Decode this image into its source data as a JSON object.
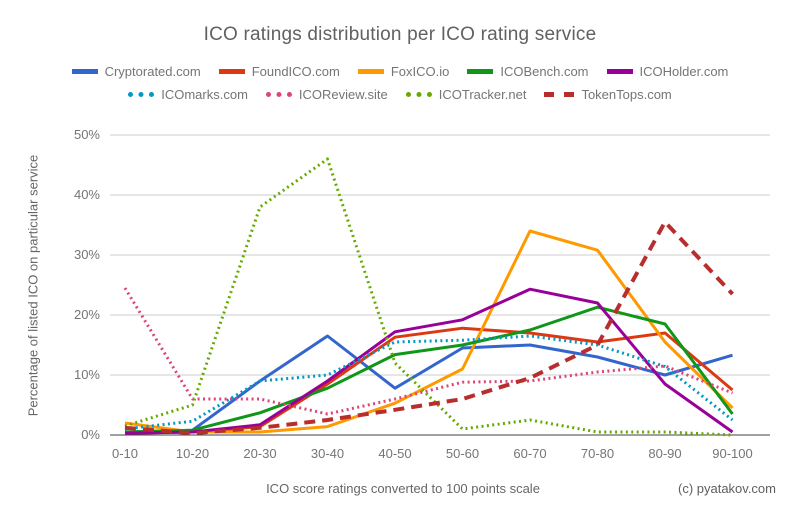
{
  "title": "ICO ratings distribution per ICO rating service",
  "y_axis_title": "Percentage of listed ICO on particular service",
  "x_axis_title": "ICO score ratings converted to 100 points scale",
  "copyright": "(c) pyatakov.com",
  "chart_data": {
    "type": "line",
    "categories": [
      "0-10",
      "10-20",
      "20-30",
      "30-40",
      "40-50",
      "50-60",
      "60-70",
      "70-80",
      "80-90",
      "90-100"
    ],
    "y_ticks": [
      "0%",
      "10%",
      "20%",
      "30%",
      "40%",
      "50%"
    ],
    "ylim": [
      0,
      50
    ],
    "grid": true,
    "legend_position": "top",
    "xlabel": "ICO score ratings converted to 100 points scale",
    "ylabel": "Percentage of listed ICO on particular service",
    "series": [
      {
        "name": "Cryptorated.com",
        "color": "#3366CC",
        "style": "solid",
        "values": [
          0.5,
          0.8,
          9,
          16.5,
          7.8,
          14.5,
          15,
          13,
          10,
          13.3
        ]
      },
      {
        "name": "FoundICO.com",
        "color": "#DC3912",
        "style": "solid",
        "values": [
          0.3,
          0.5,
          1.4,
          8.5,
          16.3,
          17.8,
          17,
          15.5,
          17,
          7.5
        ]
      },
      {
        "name": "FoxICO.io",
        "color": "#FF9900",
        "style": "solid",
        "values": [
          2,
          0.5,
          0.5,
          1.4,
          5.3,
          11,
          34,
          30.8,
          15.5,
          4.5
        ]
      },
      {
        "name": "ICOBench.com",
        "color": "#109618",
        "style": "solid",
        "values": [
          0.5,
          0.8,
          3.7,
          7.8,
          13.4,
          15,
          17.5,
          21.3,
          18.5,
          3.5
        ]
      },
      {
        "name": "ICOHolder.com",
        "color": "#990099",
        "style": "solid",
        "values": [
          0.3,
          0.5,
          1.7,
          9,
          17.2,
          19.2,
          24.3,
          22,
          8.5,
          0.5
        ]
      },
      {
        "name": "ICOmarks.com",
        "color": "#0099C6",
        "style": "dotted",
        "values": [
          1,
          2.3,
          9,
          10,
          15.5,
          15.8,
          16.5,
          15,
          11.4,
          2.5
        ]
      },
      {
        "name": "ICOReview.site",
        "color": "#DD4477",
        "style": "dotted",
        "values": [
          24.5,
          6,
          6,
          3.5,
          6,
          8.8,
          9,
          10.5,
          11.5,
          7
        ]
      },
      {
        "name": "ICOTracker.net",
        "color": "#66AA00",
        "style": "dotted",
        "values": [
          1.5,
          5,
          38,
          46,
          12,
          1,
          2.5,
          0.5,
          0.5,
          0
        ]
      },
      {
        "name": "TokenTops.com",
        "color": "#B82E2E",
        "style": "dashed",
        "values": [
          1.2,
          0.3,
          1.2,
          2.5,
          4.2,
          6,
          9.5,
          15,
          35.5,
          23.5
        ]
      }
    ]
  }
}
